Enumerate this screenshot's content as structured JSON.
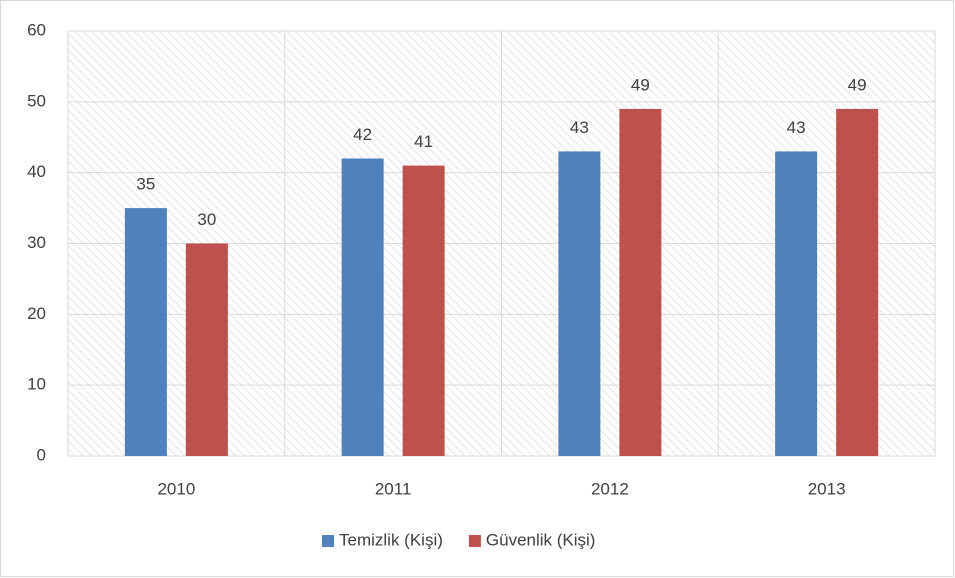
{
  "chart_data": {
    "type": "bar",
    "categories": [
      "2010",
      "2011",
      "2012",
      "2013"
    ],
    "series": [
      {
        "name": "Temizlik (Kişi)",
        "color": "#4f81bd",
        "values": [
          35,
          42,
          43,
          43
        ]
      },
      {
        "name": "Güvenlik (Kişi)",
        "color": "#c0504d",
        "values": [
          30,
          41,
          49,
          49
        ]
      }
    ],
    "ylim": [
      0,
      60
    ],
    "yticks": [
      0,
      10,
      20,
      30,
      40,
      50,
      60
    ],
    "grid": true,
    "legend": "bottom"
  }
}
